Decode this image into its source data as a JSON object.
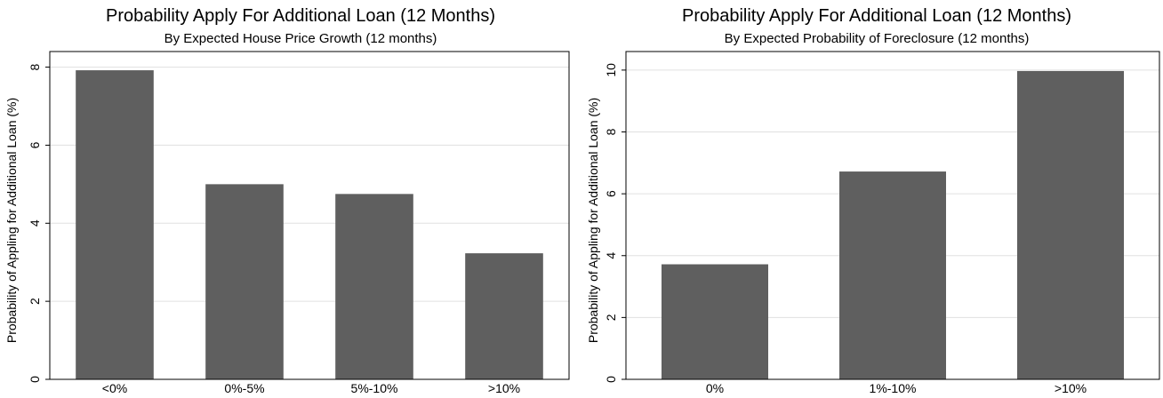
{
  "chart_data": [
    {
      "type": "bar",
      "title": "Probability Apply For Additional Loan (12 Months)",
      "subtitle": "By Expected House Price Growth (12 months)",
      "xlabel": "",
      "ylabel": "Probability of Appling for Additional Loan (%)",
      "categories": [
        "<0%",
        "0%-5%",
        "5%-10%",
        ">10%"
      ],
      "values": [
        7.92,
        5.0,
        4.75,
        3.23
      ],
      "ylim": [
        0,
        8.4
      ],
      "yticks": [
        0,
        2,
        4,
        6,
        8
      ],
      "grid": true,
      "bar_color": "#5f5f5f",
      "grid_color": "#e0e0e0"
    },
    {
      "type": "bar",
      "title": "Probability Apply For Additional Loan (12 Months)",
      "subtitle": "By Expected Probability of Foreclosure (12 months)",
      "xlabel": "",
      "ylabel": "Probability of Appling for Additional Loan (%)",
      "categories": [
        "0%",
        "1%-10%",
        ">10%"
      ],
      "values": [
        3.72,
        6.72,
        9.97
      ],
      "ylim": [
        0,
        10.6
      ],
      "yticks": [
        0,
        2,
        4,
        6,
        8,
        10
      ],
      "grid": true,
      "bar_color": "#5f5f5f",
      "grid_color": "#e0e0e0"
    }
  ]
}
